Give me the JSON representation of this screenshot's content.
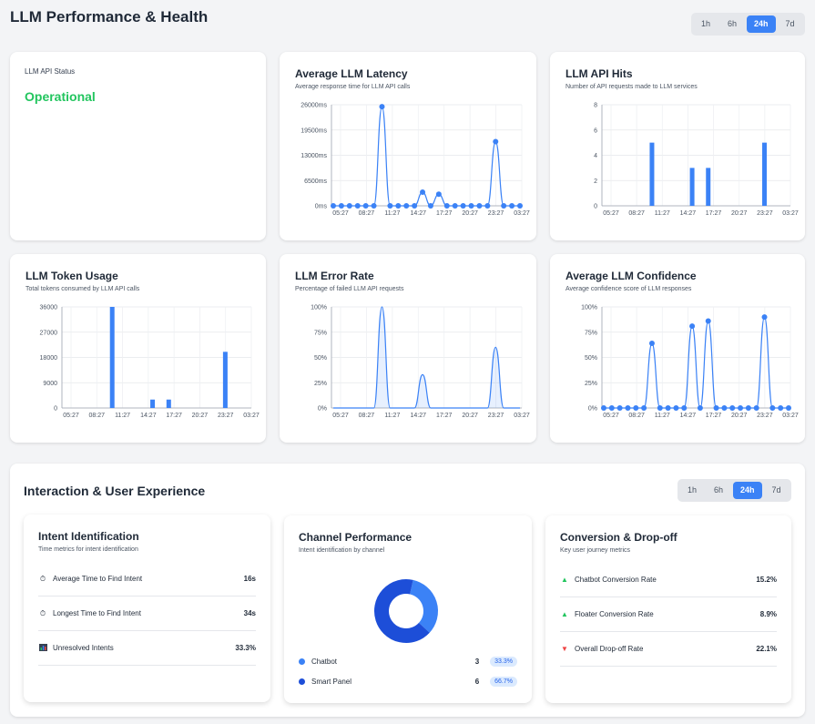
{
  "header": {
    "title": "LLM Performance & Health",
    "time_tabs": [
      "1h",
      "6h",
      "24h",
      "7d"
    ],
    "active_tab": "24h"
  },
  "status_card": {
    "label": "LLM API Status",
    "value": "Operational",
    "value_color": "#22c55e"
  },
  "charts": {
    "latency": {
      "title": "Average LLM Latency",
      "subtitle": "Average response time for LLM API calls"
    },
    "hits": {
      "title": "LLM API Hits",
      "subtitle": "Number of API requests made to LLM services"
    },
    "tokens": {
      "title": "LLM Token Usage",
      "subtitle": "Total tokens consumed by LLM API calls"
    },
    "error": {
      "title": "LLM Error Rate",
      "subtitle": "Percentage of failed LLM API requests"
    },
    "confidence": {
      "title": "Average LLM Confidence",
      "subtitle": "Average confidence score of LLM responses"
    }
  },
  "chart_data": [
    {
      "id": "latency",
      "type": "line",
      "title": "Average LLM Latency",
      "x_ticks": [
        "05:27",
        "08:27",
        "11:27",
        "14:27",
        "17:27",
        "20:27",
        "23:27",
        "03:27"
      ],
      "y_ticks": [
        "0ms",
        "6500ms",
        "13000ms",
        "19500ms",
        "26000ms"
      ],
      "ylim": [
        0,
        26000
      ],
      "grid": true,
      "color": "#3b82f6",
      "values": [
        0,
        0,
        0,
        0,
        0,
        0,
        25500,
        0,
        0,
        0,
        0,
        3500,
        0,
        3000,
        0,
        0,
        0,
        0,
        0,
        0,
        16500,
        0,
        0,
        0
      ]
    },
    {
      "id": "hits",
      "type": "bar",
      "title": "LLM API Hits",
      "x_ticks": [
        "05:27",
        "08:27",
        "11:27",
        "14:27",
        "17:27",
        "20:27",
        "23:27",
        "03:27"
      ],
      "y_ticks": [
        "0",
        "2",
        "4",
        "6",
        "8"
      ],
      "ylim": [
        0,
        8
      ],
      "grid": true,
      "color": "#3b82f6",
      "values": [
        0,
        0,
        0,
        0,
        0,
        0,
        5,
        0,
        0,
        0,
        0,
        3,
        0,
        3,
        0,
        0,
        0,
        0,
        0,
        0,
        5,
        0,
        0,
        0
      ]
    },
    {
      "id": "tokens",
      "type": "bar",
      "title": "LLM Token Usage",
      "x_ticks": [
        "05:27",
        "08:27",
        "11:27",
        "14:27",
        "17:27",
        "20:27",
        "23:27",
        "03:27"
      ],
      "y_ticks": [
        "0",
        "9000",
        "18000",
        "27000",
        "36000"
      ],
      "ylim": [
        0,
        36000
      ],
      "grid": true,
      "color": "#3b82f6",
      "values": [
        0,
        0,
        0,
        0,
        0,
        0,
        36000,
        0,
        0,
        0,
        0,
        3000,
        0,
        3000,
        0,
        0,
        0,
        0,
        0,
        0,
        20000,
        0,
        0,
        0
      ]
    },
    {
      "id": "error",
      "type": "area",
      "title": "LLM Error Rate",
      "x_ticks": [
        "05:27",
        "08:27",
        "11:27",
        "14:27",
        "17:27",
        "20:27",
        "23:27",
        "03:27"
      ],
      "y_ticks": [
        "0%",
        "25%",
        "50%",
        "75%",
        "100%"
      ],
      "ylim": [
        0,
        100
      ],
      "grid": true,
      "color": "#3b82f6",
      "values": [
        0,
        0,
        0,
        0,
        0,
        0,
        100,
        0,
        0,
        0,
        0,
        33,
        0,
        0,
        0,
        0,
        0,
        0,
        0,
        0,
        60,
        0,
        0,
        0
      ]
    },
    {
      "id": "confidence",
      "type": "line",
      "title": "Average LLM Confidence",
      "x_ticks": [
        "05:27",
        "08:27",
        "11:27",
        "14:27",
        "17:27",
        "20:27",
        "23:27",
        "03:27"
      ],
      "y_ticks": [
        "0%",
        "25%",
        "50%",
        "75%",
        "100%"
      ],
      "ylim": [
        0,
        100
      ],
      "grid": true,
      "color": "#3b82f6",
      "values": [
        0,
        0,
        0,
        0,
        0,
        0,
        64,
        0,
        0,
        0,
        0,
        81,
        0,
        86,
        0,
        0,
        0,
        0,
        0,
        0,
        90,
        0,
        0,
        0
      ]
    },
    {
      "id": "channel",
      "type": "pie",
      "title": "Channel Performance",
      "categories": [
        "Chatbot",
        "Smart Panel"
      ],
      "values": [
        3,
        6
      ],
      "colors": [
        "#3b82f6",
        "#1d4ed8"
      ]
    }
  ],
  "interaction": {
    "title": "Interaction & User Experience",
    "time_tabs": [
      "1h",
      "6h",
      "24h",
      "7d"
    ],
    "active_tab": "24h",
    "intent": {
      "title": "Intent Identification",
      "subtitle": "Time metrics for intent identification",
      "rows": [
        {
          "icon": "stopwatch-icon",
          "label": "Average Time to Find Intent",
          "value": "16s"
        },
        {
          "icon": "stopwatch-icon",
          "label": "Longest Time to Find Intent",
          "value": "34s"
        },
        {
          "icon": "bar-chart-icon",
          "label": "Unresolved Intents",
          "value": "33.3%"
        }
      ]
    },
    "channel": {
      "title": "Channel Performance",
      "subtitle": "Intent identification by channel",
      "rows": [
        {
          "label": "Chatbot",
          "count": "3",
          "pct": "33.3%",
          "color": "#3b82f6"
        },
        {
          "label": "Smart Panel",
          "count": "6",
          "pct": "66.7%",
          "color": "#1d4ed8"
        }
      ]
    },
    "conversion": {
      "title": "Conversion & Drop-off",
      "subtitle": "Key user journey metrics",
      "rows": [
        {
          "icon": "triangle-up-icon",
          "label": "Chatbot Conversion Rate",
          "value": "15.2%"
        },
        {
          "icon": "triangle-up-icon",
          "label": "Floater Conversion Rate",
          "value": "8.9%"
        },
        {
          "icon": "triangle-down-icon",
          "label": "Overall Drop-off Rate",
          "value": "22.1%"
        }
      ]
    }
  }
}
